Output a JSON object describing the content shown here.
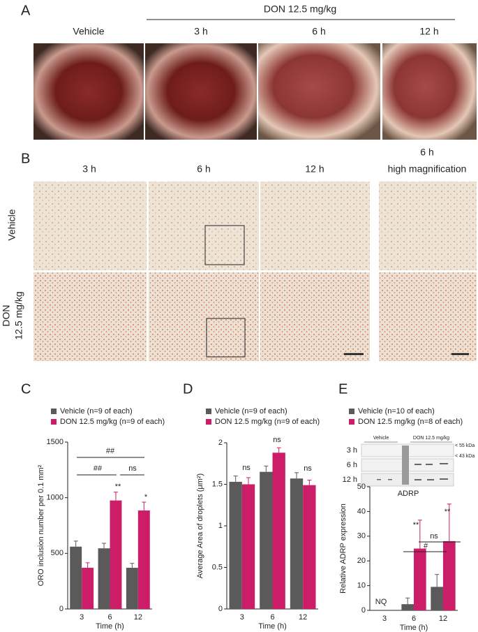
{
  "panels": {
    "A": {
      "letter": "A",
      "group_label": "DON 12.5 mg/kg",
      "columns": [
        "Vehicle",
        "3 h",
        "6 h",
        "12 h"
      ]
    },
    "B": {
      "letter": "B",
      "columns": [
        "3 h",
        "6 h",
        "12 h"
      ],
      "magnified_time": "6 h",
      "magnified_label": "high magnification",
      "rows": [
        "Vehicle",
        "DON",
        "12.5 mg/kg"
      ]
    },
    "E_blot": {
      "rows": [
        "3 h",
        "6 h",
        "12 h"
      ],
      "groups": [
        "Vehicle",
        "DON 12.5 mg/kg"
      ],
      "markers": [
        "< 55 kDa",
        "< 43 kDa"
      ],
      "protein": "ADRP"
    }
  },
  "chart_data": [
    {
      "type": "bar",
      "letter": "C",
      "xlabel": "Time (h)",
      "ylabel": "ORO inclusion number per 0.1 mm²",
      "categories": [
        "3",
        "6",
        "12"
      ],
      "ylim": [
        0,
        1500
      ],
      "yticks": [
        0,
        500,
        1000,
        1500
      ],
      "series": [
        {
          "name": "Vehicle (n=9 of each)",
          "color": "#5a5a5a",
          "values": [
            560,
            545,
            370
          ],
          "errors": [
            50,
            45,
            40
          ]
        },
        {
          "name": "DON 12.5 mg/kg (n=9 of each)",
          "color": "#cc1d68",
          "values": [
            370,
            975,
            885
          ],
          "errors": [
            45,
            75,
            75
          ]
        }
      ],
      "annotations": [
        "##",
        "##",
        "ns",
        "**",
        "*"
      ]
    },
    {
      "type": "bar",
      "letter": "D",
      "xlabel": "Time (h)",
      "ylabel": "Average Area of droplets (μm²)",
      "categories": [
        "3",
        "6",
        "12"
      ],
      "ylim": [
        0,
        2
      ],
      "yticks": [
        0,
        0.5,
        1,
        1.5,
        2
      ],
      "series": [
        {
          "name": "Vehicle (n=9 of each)",
          "color": "#5a5a5a",
          "values": [
            1.53,
            1.65,
            1.57
          ],
          "errors": [
            0.07,
            0.07,
            0.07
          ]
        },
        {
          "name": "DON 12.5 mg/kg (n=9 of each)",
          "color": "#cc1d68",
          "values": [
            1.5,
            1.88,
            1.49
          ],
          "errors": [
            0.08,
            0.06,
            0.06
          ]
        }
      ],
      "annotations": [
        "ns",
        "ns",
        "ns"
      ]
    },
    {
      "type": "bar",
      "letter": "E",
      "xlabel": "Time (h)",
      "ylabel": "Relative ADRP expression",
      "categories": [
        "3",
        "6",
        "12"
      ],
      "ylim": [
        0,
        50
      ],
      "yticks": [
        0,
        10,
        20,
        30,
        40,
        50
      ],
      "series": [
        {
          "name": "Vehicle (n=10 of each)",
          "color": "#5a5a5a",
          "values": [
            null,
            2.5,
            9.5
          ],
          "errors": [
            null,
            2.5,
            5
          ]
        },
        {
          "name": "DON 12.5 mg/kg (n=8 of each)",
          "color": "#cc1d68",
          "values": [
            null,
            25,
            28
          ],
          "errors": [
            null,
            11.5,
            15
          ]
        }
      ],
      "annotations": [
        "NQ",
        "#",
        "ns",
        "**",
        "**"
      ]
    }
  ]
}
